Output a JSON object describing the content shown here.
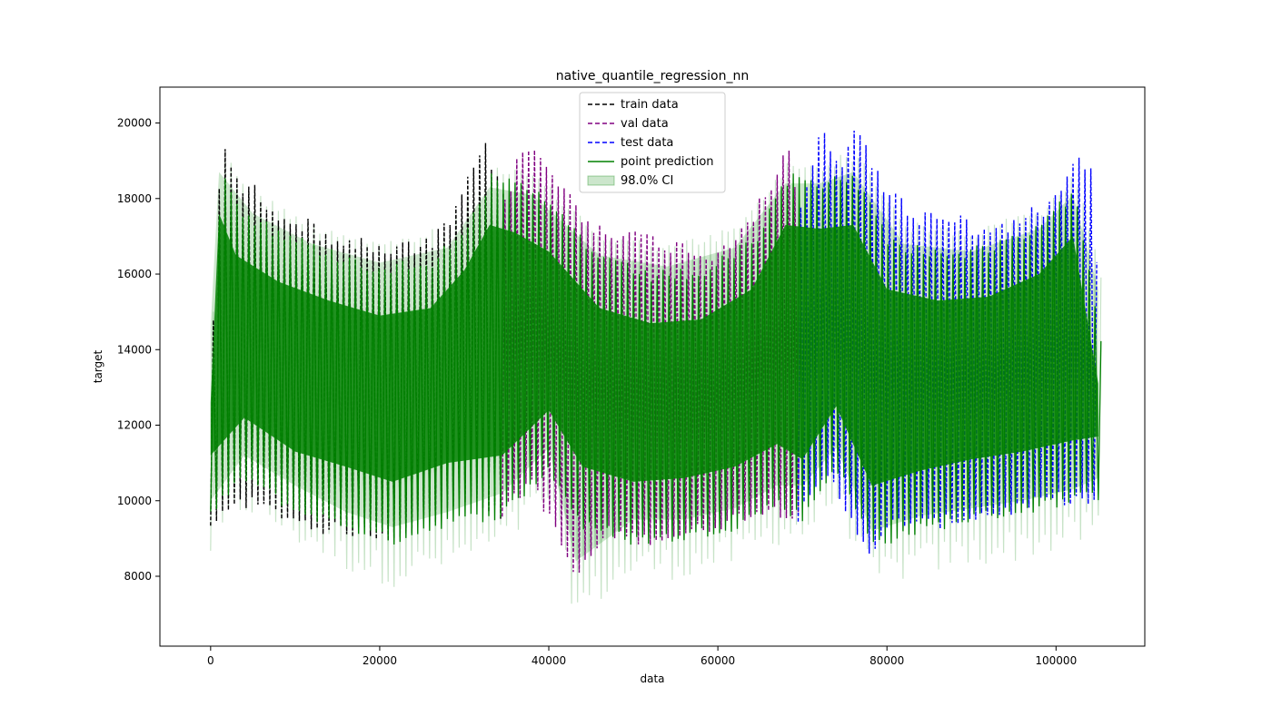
{
  "chart_data": {
    "type": "line",
    "title": "native_quantile_regression_nn",
    "xlabel": "data",
    "ylabel": "target",
    "xlim": [
      -6000,
      110500
    ],
    "ylim": [
      6150,
      20950
    ],
    "xticks": [
      0,
      20000,
      40000,
      60000,
      80000,
      100000
    ],
    "yticks": [
      8000,
      10000,
      12000,
      14000,
      16000,
      18000,
      20000
    ],
    "grid": false,
    "legend_position": "top-center",
    "series": [
      {
        "name": "train data",
        "color": "#000000",
        "style": "dashed",
        "x_range": [
          0,
          34500
        ],
        "peaks": [
          [
            0,
            15000
          ],
          [
            1000,
            20000
          ],
          [
            2500,
            18600
          ],
          [
            5000,
            18400
          ],
          [
            8000,
            17800
          ],
          [
            11000,
            17500
          ],
          [
            14000,
            17200
          ],
          [
            17000,
            17000
          ],
          [
            20000,
            16800
          ],
          [
            23000,
            16900
          ],
          [
            26000,
            17000
          ],
          [
            29000,
            18000
          ],
          [
            32000,
            19600
          ],
          [
            34500,
            18400
          ]
        ],
        "troughs": [
          [
            0,
            9100
          ],
          [
            3000,
            9900
          ],
          [
            8000,
            9500
          ],
          [
            13000,
            9100
          ],
          [
            18000,
            9000
          ],
          [
            21500,
            8900
          ],
          [
            26000,
            9300
          ],
          [
            31000,
            10000
          ],
          [
            34500,
            9400
          ]
        ]
      },
      {
        "name": "val data",
        "color": "#800080",
        "style": "dashed",
        "x_range": [
          34500,
          69500
        ],
        "peaks": [
          [
            34500,
            18000
          ],
          [
            36000,
            19300
          ],
          [
            38000,
            19500
          ],
          [
            41000,
            18600
          ],
          [
            44000,
            17600
          ],
          [
            48000,
            17300
          ],
          [
            52000,
            17100
          ],
          [
            56000,
            16900
          ],
          [
            59000,
            16700
          ],
          [
            62000,
            17300
          ],
          [
            66000,
            18400
          ],
          [
            68000,
            19800
          ],
          [
            69500,
            17500
          ]
        ],
        "troughs": [
          [
            34500,
            9500
          ],
          [
            38000,
            10400
          ],
          [
            43200,
            7800
          ],
          [
            47000,
            9000
          ],
          [
            51000,
            8800
          ],
          [
            55000,
            8900
          ],
          [
            60000,
            9200
          ],
          [
            65000,
            9600
          ],
          [
            69500,
            9500
          ]
        ]
      },
      {
        "name": "test data",
        "color": "#0000ff",
        "style": "dashed",
        "x_range": [
          69500,
          105000
        ],
        "peaks": [
          [
            69500,
            17800
          ],
          [
            71800,
            20000
          ],
          [
            74000,
            19000
          ],
          [
            76000,
            20200
          ],
          [
            79000,
            18600
          ],
          [
            83000,
            17700
          ],
          [
            87000,
            17800
          ],
          [
            91000,
            17300
          ],
          [
            95000,
            17600
          ],
          [
            99000,
            18000
          ],
          [
            102000,
            19500
          ],
          [
            104000,
            18900
          ],
          [
            105000,
            14600
          ]
        ],
        "troughs": [
          [
            69500,
            9400
          ],
          [
            73000,
            10500
          ],
          [
            78200,
            8400
          ],
          [
            81000,
            9300
          ],
          [
            85000,
            9200
          ],
          [
            90000,
            9400
          ],
          [
            95000,
            9600
          ],
          [
            100000,
            9900
          ],
          [
            104500,
            9800
          ]
        ]
      },
      {
        "name": "point prediction",
        "color": "#008000",
        "style": "solid",
        "x_range": [
          0,
          105000
        ],
        "peaks": [
          [
            0,
            14000
          ],
          [
            1000,
            19000
          ],
          [
            3000,
            17900
          ],
          [
            8000,
            17200
          ],
          [
            14000,
            16700
          ],
          [
            20000,
            16300
          ],
          [
            26000,
            16500
          ],
          [
            30000,
            17500
          ],
          [
            33000,
            18700
          ],
          [
            36000,
            18500
          ],
          [
            40000,
            18000
          ],
          [
            46000,
            16500
          ],
          [
            52000,
            16100
          ],
          [
            58000,
            16200
          ],
          [
            64000,
            17000
          ],
          [
            68000,
            18700
          ],
          [
            72000,
            18600
          ],
          [
            76000,
            18700
          ],
          [
            80000,
            17000
          ],
          [
            86000,
            16700
          ],
          [
            92000,
            16800
          ],
          [
            98000,
            17400
          ],
          [
            102000,
            18400
          ],
          [
            105000,
            14500
          ]
        ],
        "troughs": [
          [
            0,
            9500
          ],
          [
            4000,
            10500
          ],
          [
            10000,
            9600
          ],
          [
            16000,
            9200
          ],
          [
            21500,
            8800
          ],
          [
            28000,
            9300
          ],
          [
            34500,
            9500
          ],
          [
            40000,
            10700
          ],
          [
            44000,
            9200
          ],
          [
            50000,
            8800
          ],
          [
            56000,
            8900
          ],
          [
            62000,
            9200
          ],
          [
            67000,
            9800
          ],
          [
            70000,
            9400
          ],
          [
            74000,
            10800
          ],
          [
            78200,
            8700
          ],
          [
            84000,
            9100
          ],
          [
            90000,
            9400
          ],
          [
            96000,
            9600
          ],
          [
            102000,
            9900
          ],
          [
            105000,
            10000
          ]
        ]
      },
      {
        "name": "98.0% CI",
        "color": "#008000",
        "style": "band",
        "x_range": [
          0,
          105000
        ],
        "upper": [
          [
            0,
            15200
          ],
          [
            1000,
            19300
          ],
          [
            5000,
            18200
          ],
          [
            12000,
            17400
          ],
          [
            20000,
            16900
          ],
          [
            28000,
            17300
          ],
          [
            33000,
            18900
          ],
          [
            38000,
            18700
          ],
          [
            46000,
            17100
          ],
          [
            54000,
            16800
          ],
          [
            62000,
            17300
          ],
          [
            68000,
            19000
          ],
          [
            72000,
            19000
          ],
          [
            76000,
            19300
          ],
          [
            82000,
            17400
          ],
          [
            90000,
            17200
          ],
          [
            98000,
            17800
          ],
          [
            102000,
            18700
          ],
          [
            105000,
            16200
          ]
        ],
        "lower": [
          [
            0,
            8400
          ],
          [
            4000,
            9600
          ],
          [
            10000,
            8800
          ],
          [
            16000,
            8100
          ],
          [
            21500,
            7700
          ],
          [
            28000,
            8100
          ],
          [
            34500,
            8600
          ],
          [
            40000,
            9800
          ],
          [
            43200,
            6800
          ],
          [
            50000,
            7900
          ],
          [
            56000,
            7900
          ],
          [
            62000,
            8200
          ],
          [
            67000,
            8800
          ],
          [
            70000,
            8800
          ],
          [
            74000,
            9800
          ],
          [
            78200,
            7600
          ],
          [
            84000,
            8000
          ],
          [
            90000,
            8200
          ],
          [
            96000,
            8400
          ],
          [
            102000,
            8700
          ],
          [
            105000,
            9000
          ]
        ]
      }
    ]
  }
}
